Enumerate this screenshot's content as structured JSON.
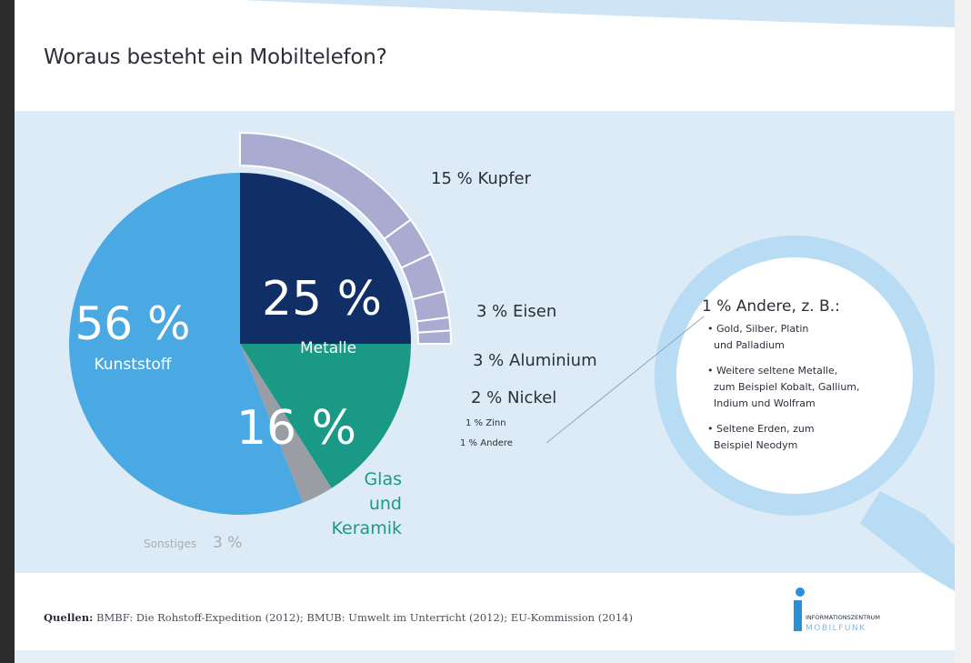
{
  "title": "Woraus besteht ein Mobiltelefon?",
  "chart_data": {
    "type": "pie",
    "title": "Woraus besteht ein Mobiltelefon?",
    "slices": [
      {
        "key": "metalle",
        "value": 25,
        "value_label": "25 %",
        "label": "Metalle",
        "color": "#0f2f66"
      },
      {
        "key": "glas",
        "value": 16,
        "value_label": "16 %",
        "label_lines": [
          "Glas",
          "und",
          "Keramik"
        ],
        "color": "#1a9a86"
      },
      {
        "key": "sonstiges",
        "value": 3,
        "value_label": "3 %",
        "label": "Sonstiges",
        "color": "#9a9da3"
      },
      {
        "key": "kunststoff",
        "value": 56,
        "value_label": "56 %",
        "label": "Kunststoff",
        "color": "#4aa8e2"
      }
    ],
    "metal_breakdown": [
      {
        "value": 15,
        "label": "15 % Kupfer"
      },
      {
        "value": 3,
        "label": "3 % Eisen"
      },
      {
        "value": 3,
        "label": "3 % Aluminium"
      },
      {
        "value": 2,
        "label": "2 % Nickel"
      },
      {
        "value": 1,
        "label": "1 % Zinn"
      },
      {
        "value": 1,
        "label": "1 % Andere"
      }
    ],
    "magnifier": {
      "heading": "1 % Andere, z. B.:",
      "lines": [
        "• Gold, Silber, Platin",
        "  und Palladium",
        "• Weitere seltene Metalle,",
        "  zum Beispiel Kobalt, Gallium,",
        "  Indium und Wolfram",
        "• Seltene Erden, zum",
        "  Beispiel Neodym"
      ]
    }
  },
  "footer": {
    "label": "Quellen:",
    "text": "BMBF: Die Rohstoff-Expedition (2012); BMUB: Umwelt im Unterricht (2012); EU-Kommission (2014)"
  },
  "logo": {
    "line1": "INFORMATIONSZENTRUM",
    "line2": "MOBILFUNK"
  },
  "colors": {
    "panel": "#dcebf6",
    "ring": "#a9acd0",
    "magnifier": "#b7dcf4",
    "text_dark": "#2a2f3a"
  }
}
